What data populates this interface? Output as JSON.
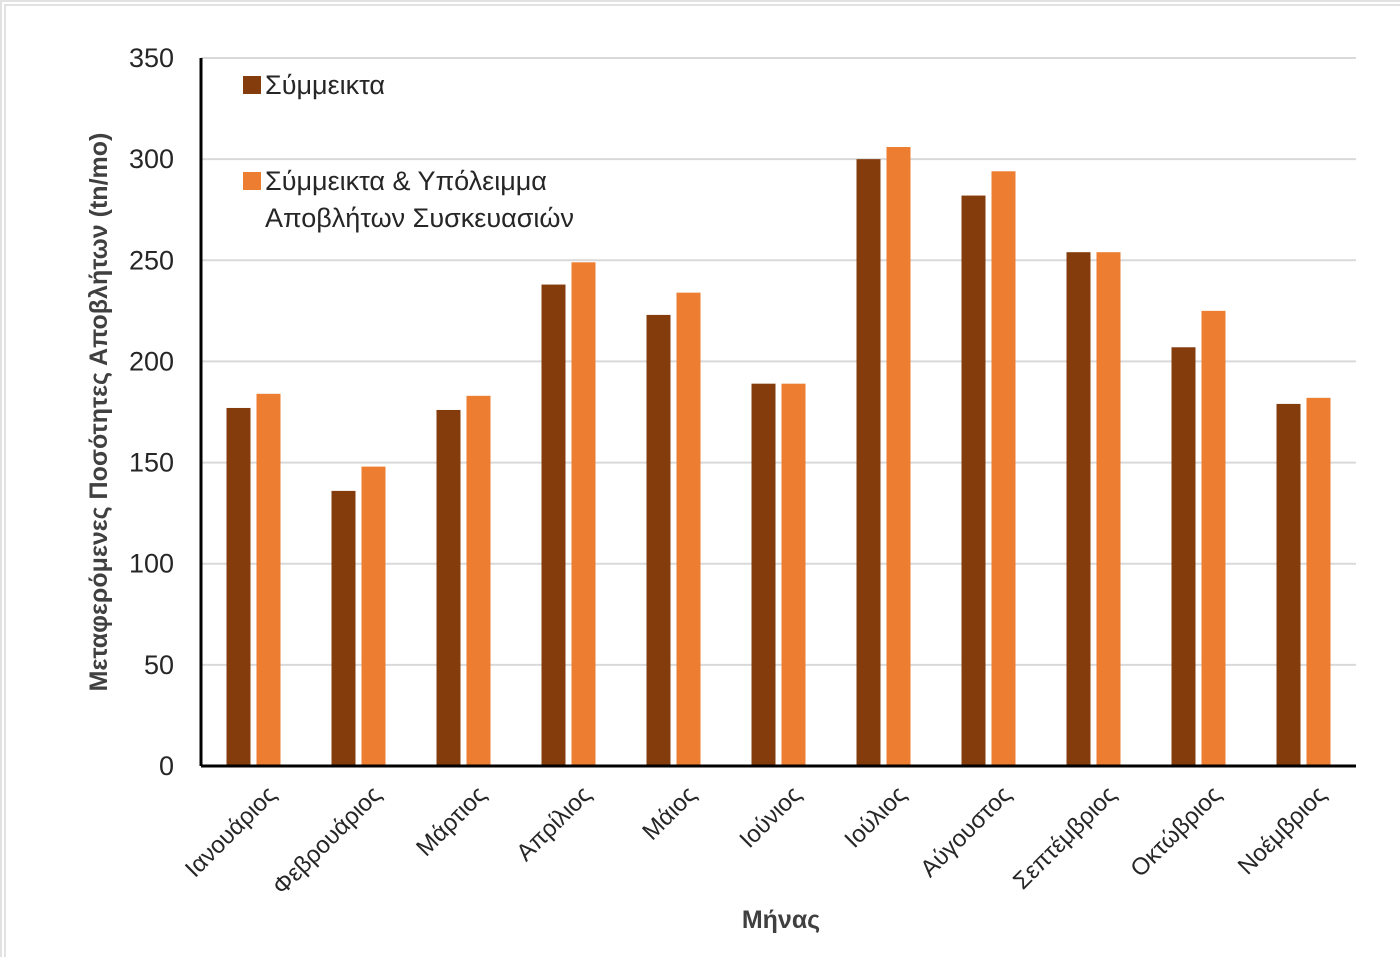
{
  "chart_data": {
    "type": "bar",
    "categories": [
      "Ιανουάριος",
      "Φεβρουάριος",
      "Μάρτιος",
      "Απρίλιος",
      "Μάιος",
      "Ιούνιος",
      "Ιούλιος",
      "Αύγουστος",
      "Σεπτέμβριος",
      "Οκτώβριος",
      "Νοέμβριος"
    ],
    "series": [
      {
        "name": "Σύμμεικτα",
        "color": "#843C0C",
        "values": [
          177,
          136,
          176,
          238,
          223,
          189,
          300,
          282,
          254,
          207,
          179
        ]
      },
      {
        "name_lines": [
          "Σύμμεικτα & Υπόλειμμα",
          "Αποβλήτων Συσκευασιών"
        ],
        "color": "#ED7D31",
        "values": [
          184,
          148,
          183,
          249,
          234,
          189,
          306,
          294,
          254,
          225,
          182
        ]
      }
    ],
    "xlabel": "Μήνας",
    "ylabel": "Μεταφερόμενες Ποσότητες Αποβλήτων (tn/mo)",
    "ylim": [
      0,
      350
    ],
    "yticks": [
      "0",
      "50",
      "100",
      "150",
      "200",
      "250",
      "300",
      "350"
    ],
    "grid": true,
    "legend_position": "top-left"
  }
}
